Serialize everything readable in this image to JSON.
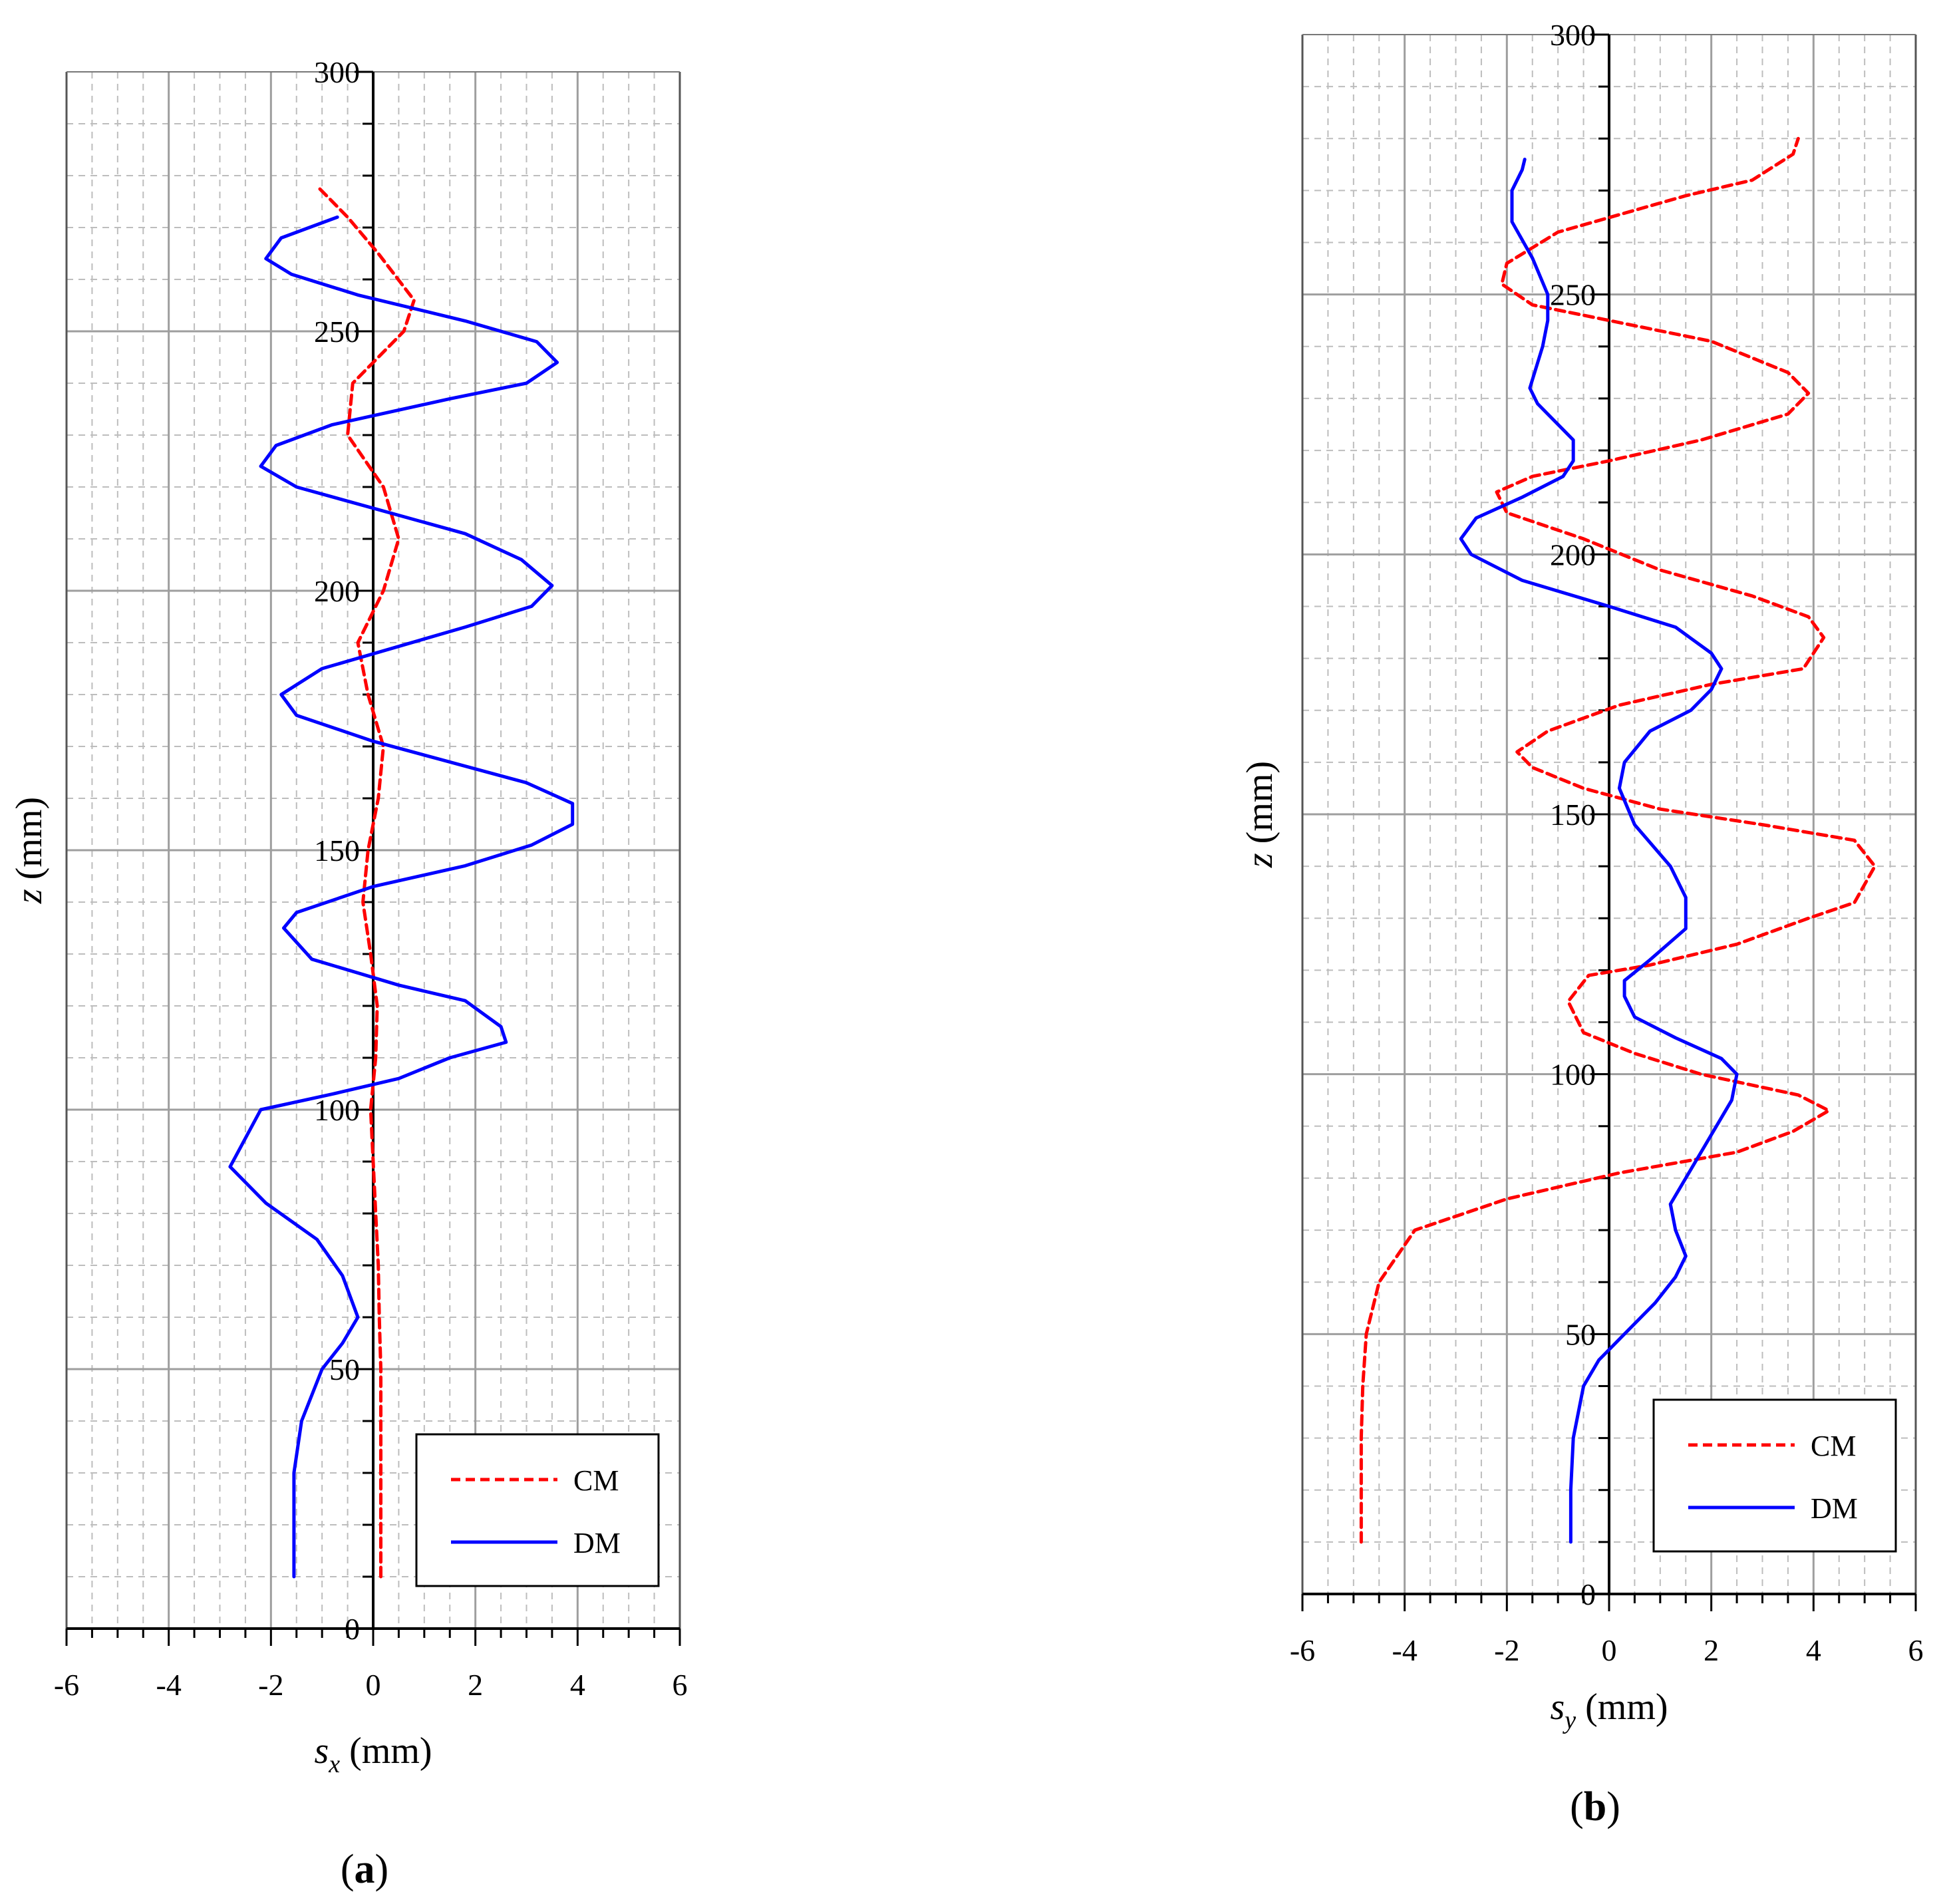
{
  "chart_data": [
    {
      "type": "line",
      "panel": "a",
      "caption_letter": "a",
      "xlabel_var": "s",
      "xlabel_sub": "x",
      "xlabel_unit": "(mm)",
      "ylabel_var": "z",
      "ylabel_unit": "(mm)",
      "xlim": [
        -6,
        6
      ],
      "ylim": [
        0,
        300
      ],
      "xticks": [
        -6,
        -4,
        -2,
        0,
        2,
        4,
        6
      ],
      "yticks": [
        0,
        50,
        100,
        150,
        200,
        250,
        300
      ],
      "legend_position": "bottom-right",
      "series": [
        {
          "name": "CM",
          "color": "#ff0000",
          "style": "dashed",
          "points": [
            [
              0.15,
              10
            ],
            [
              0.15,
              20
            ],
            [
              0.15,
              30
            ],
            [
              0.15,
              40
            ],
            [
              0.15,
              50
            ],
            [
              0.12,
              60
            ],
            [
              0.1,
              70
            ],
            [
              0.05,
              80
            ],
            [
              0.0,
              90
            ],
            [
              -0.05,
              100
            ],
            [
              0.05,
              110
            ],
            [
              0.08,
              120
            ],
            [
              -0.05,
              130
            ],
            [
              -0.2,
              140
            ],
            [
              -0.1,
              150
            ],
            [
              0.1,
              160
            ],
            [
              0.2,
              170
            ],
            [
              -0.1,
              180
            ],
            [
              -0.3,
              190
            ],
            [
              0.2,
              200
            ],
            [
              0.5,
              210
            ],
            [
              0.2,
              220
            ],
            [
              -0.5,
              230
            ],
            [
              -0.4,
              240
            ],
            [
              0.6,
              250
            ],
            [
              0.8,
              256
            ],
            [
              0.1,
              265
            ],
            [
              -0.5,
              272
            ],
            [
              -1.1,
              278
            ]
          ]
        },
        {
          "name": "DM",
          "color": "#0000ff",
          "style": "solid",
          "points": [
            [
              -1.55,
              10
            ],
            [
              -1.55,
              20
            ],
            [
              -1.55,
              30
            ],
            [
              -1.4,
              40
            ],
            [
              -1.0,
              50
            ],
            [
              -0.6,
              55
            ],
            [
              -0.3,
              60
            ],
            [
              -0.6,
              68
            ],
            [
              -1.1,
              75
            ],
            [
              -2.1,
              82
            ],
            [
              -2.8,
              89
            ],
            [
              -2.2,
              100
            ],
            [
              -0.8,
              103
            ],
            [
              0.5,
              106
            ],
            [
              1.5,
              110
            ],
            [
              2.6,
              113
            ],
            [
              2.5,
              116
            ],
            [
              1.8,
              121
            ],
            [
              0.5,
              124
            ],
            [
              -1.2,
              129
            ],
            [
              -1.75,
              135
            ],
            [
              -1.5,
              138
            ],
            [
              0.0,
              143
            ],
            [
              1.8,
              147
            ],
            [
              3.1,
              151
            ],
            [
              3.9,
              155
            ],
            [
              3.9,
              159
            ],
            [
              3.0,
              163
            ],
            [
              0.0,
              171
            ],
            [
              -1.5,
              176
            ],
            [
              -1.8,
              180
            ],
            [
              -1.0,
              185
            ],
            [
              1.8,
              193
            ],
            [
              3.1,
              197
            ],
            [
              3.5,
              201
            ],
            [
              2.9,
              206
            ],
            [
              1.8,
              211
            ],
            [
              -1.5,
              220
            ],
            [
              -2.2,
              224
            ],
            [
              -1.9,
              228
            ],
            [
              -0.8,
              232
            ],
            [
              1.5,
              237
            ],
            [
              3.0,
              240
            ],
            [
              3.6,
              244
            ],
            [
              3.2,
              248
            ],
            [
              1.8,
              252
            ],
            [
              -0.3,
              257
            ],
            [
              -1.6,
              261
            ],
            [
              -2.1,
              264
            ],
            [
              -1.8,
              268
            ],
            [
              -0.7,
              272
            ]
          ]
        }
      ]
    },
    {
      "type": "line",
      "panel": "b",
      "caption_letter": "b",
      "xlabel_var": "s",
      "xlabel_sub": "y",
      "xlabel_unit": "(mm)",
      "ylabel_var": "z",
      "ylabel_unit": "(mm)",
      "xlim": [
        -6,
        6
      ],
      "ylim": [
        0,
        300
      ],
      "xticks": [
        -6,
        -4,
        -2,
        0,
        2,
        4,
        6
      ],
      "yticks": [
        0,
        50,
        100,
        150,
        200,
        250,
        300
      ],
      "legend_position": "bottom-right",
      "series": [
        {
          "name": "CM",
          "color": "#ff0000",
          "style": "dashed",
          "points": [
            [
              -4.85,
              10
            ],
            [
              -4.85,
              20
            ],
            [
              -4.85,
              30
            ],
            [
              -4.82,
              40
            ],
            [
              -4.75,
              50
            ],
            [
              -4.5,
              60
            ],
            [
              -3.8,
              70
            ],
            [
              -2.0,
              76
            ],
            [
              0.2,
              81
            ],
            [
              2.5,
              85
            ],
            [
              3.6,
              89
            ],
            [
              4.3,
              93
            ],
            [
              3.7,
              96
            ],
            [
              1.8,
              100
            ],
            [
              0.5,
              104
            ],
            [
              -0.5,
              108
            ],
            [
              -0.8,
              114
            ],
            [
              -0.4,
              119
            ],
            [
              0.8,
              121
            ],
            [
              2.5,
              125
            ],
            [
              3.9,
              130
            ],
            [
              4.8,
              133
            ],
            [
              5.2,
              140
            ],
            [
              4.8,
              145
            ],
            [
              3.0,
              148
            ],
            [
              1.0,
              151
            ],
            [
              -0.5,
              155
            ],
            [
              -1.5,
              159
            ],
            [
              -1.8,
              162
            ],
            [
              -1.2,
              166
            ],
            [
              0.2,
              171
            ],
            [
              2.0,
              175
            ],
            [
              3.8,
              178
            ],
            [
              4.2,
              184
            ],
            [
              3.9,
              188
            ],
            [
              2.8,
              192
            ],
            [
              1.0,
              197
            ],
            [
              -0.5,
              203
            ],
            [
              -2.0,
              208
            ],
            [
              -2.2,
              212
            ],
            [
              -1.5,
              215
            ],
            [
              0.0,
              218
            ],
            [
              1.8,
              222
            ],
            [
              3.5,
              227
            ],
            [
              3.9,
              231
            ],
            [
              3.5,
              235
            ],
            [
              2.0,
              241
            ],
            [
              0.0,
              245
            ],
            [
              -1.5,
              248
            ],
            [
              -2.1,
              252
            ],
            [
              -2.0,
              256
            ],
            [
              -1.0,
              262
            ],
            [
              1.5,
              269
            ],
            [
              2.8,
              272
            ],
            [
              3.6,
              277
            ],
            [
              3.7,
              280
            ]
          ]
        },
        {
          "name": "DM",
          "color": "#0000ff",
          "style": "solid",
          "points": [
            [
              -0.75,
              10
            ],
            [
              -0.75,
              20
            ],
            [
              -0.7,
              30
            ],
            [
              -0.5,
              40
            ],
            [
              -0.2,
              45
            ],
            [
              0.3,
              50
            ],
            [
              0.9,
              56
            ],
            [
              1.3,
              61
            ],
            [
              1.5,
              65
            ],
            [
              1.3,
              70
            ],
            [
              1.2,
              75
            ],
            [
              1.8,
              85
            ],
            [
              2.4,
              95
            ],
            [
              2.5,
              100
            ],
            [
              2.2,
              103
            ],
            [
              1.3,
              107
            ],
            [
              0.5,
              111
            ],
            [
              0.3,
              115
            ],
            [
              0.3,
              118
            ],
            [
              0.8,
              122
            ],
            [
              1.5,
              128
            ],
            [
              1.5,
              134
            ],
            [
              1.2,
              140
            ],
            [
              0.5,
              148
            ],
            [
              0.2,
              155
            ],
            [
              0.3,
              160
            ],
            [
              0.8,
              166
            ],
            [
              1.6,
              170
            ],
            [
              2.0,
              174
            ],
            [
              2.2,
              178
            ],
            [
              2.0,
              181
            ],
            [
              1.3,
              186
            ],
            [
              0.0,
              190
            ],
            [
              -1.7,
              195
            ],
            [
              -2.7,
              200
            ],
            [
              -2.9,
              203
            ],
            [
              -2.6,
              207
            ],
            [
              -1.7,
              211
            ],
            [
              -0.9,
              215
            ],
            [
              -0.7,
              218
            ],
            [
              -0.7,
              222
            ],
            [
              -1.4,
              229
            ],
            [
              -1.55,
              232
            ],
            [
              -1.3,
              240
            ],
            [
              -1.2,
              245
            ],
            [
              -1.2,
              250
            ],
            [
              -1.5,
              257
            ],
            [
              -1.9,
              264
            ],
            [
              -1.9,
              270
            ],
            [
              -1.7,
              274
            ],
            [
              -1.65,
              276
            ]
          ]
        }
      ]
    }
  ]
}
